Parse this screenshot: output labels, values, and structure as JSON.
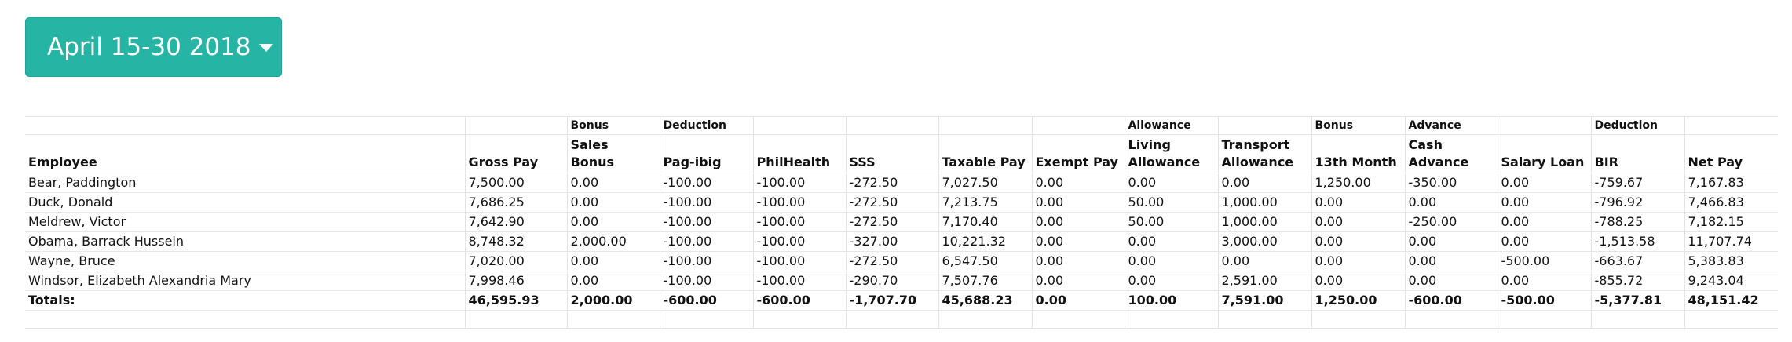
{
  "period_selector": {
    "label": "April 15-30 2018",
    "caret_icon": "caret-down-icon",
    "color": "#26b5a5"
  },
  "table": {
    "group_headers": [
      "",
      "",
      "Bonus",
      "Deduction",
      "",
      "",
      "",
      "",
      "Allowance",
      "",
      "Bonus",
      "Advance",
      "",
      "Deduction",
      ""
    ],
    "columns": [
      "Employee",
      "Gross Pay",
      "Sales Bonus",
      "Pag-ibig",
      "PhilHealth",
      "SSS",
      "Taxable Pay",
      "Exempt Pay",
      "Living Allowance",
      "Transport Allowance",
      "13th Month",
      "Cash Advance",
      "Salary Loan",
      "BIR",
      "Net Pay"
    ],
    "rows": [
      [
        "Bear, Paddington",
        "7,500.00",
        "0.00",
        "-100.00",
        "-100.00",
        "-272.50",
        "7,027.50",
        "0.00",
        "0.00",
        "0.00",
        "1,250.00",
        "-350.00",
        "0.00",
        "-759.67",
        "7,167.83"
      ],
      [
        "Duck, Donald",
        "7,686.25",
        "0.00",
        "-100.00",
        "-100.00",
        "-272.50",
        "7,213.75",
        "0.00",
        "50.00",
        "1,000.00",
        "0.00",
        "0.00",
        "0.00",
        "-796.92",
        "7,466.83"
      ],
      [
        "Meldrew, Victor",
        "7,642.90",
        "0.00",
        "-100.00",
        "-100.00",
        "-272.50",
        "7,170.40",
        "0.00",
        "50.00",
        "1,000.00",
        "0.00",
        "-250.00",
        "0.00",
        "-788.25",
        "7,182.15"
      ],
      [
        "Obama, Barrack Hussein",
        "8,748.32",
        "2,000.00",
        "-100.00",
        "-100.00",
        "-327.00",
        "10,221.32",
        "0.00",
        "0.00",
        "3,000.00",
        "0.00",
        "0.00",
        "0.00",
        "-1,513.58",
        "11,707.74"
      ],
      [
        "Wayne, Bruce",
        "7,020.00",
        "0.00",
        "-100.00",
        "-100.00",
        "-272.50",
        "6,547.50",
        "0.00",
        "0.00",
        "0.00",
        "0.00",
        "0.00",
        "-500.00",
        "-663.67",
        "5,383.83"
      ],
      [
        "Windsor, Elizabeth Alexandria Mary",
        "7,998.46",
        "0.00",
        "-100.00",
        "-100.00",
        "-290.70",
        "7,507.76",
        "0.00",
        "0.00",
        "2,591.00",
        "0.00",
        "0.00",
        "0.00",
        "-855.72",
        "9,243.04"
      ]
    ],
    "totals": [
      "Totals:",
      "46,595.93",
      "2,000.00",
      "-600.00",
      "-600.00",
      "-1,707.70",
      "45,688.23",
      "0.00",
      "100.00",
      "7,591.00",
      "1,250.00",
      "-600.00",
      "-500.00",
      "-5,377.81",
      "48,151.42"
    ]
  }
}
